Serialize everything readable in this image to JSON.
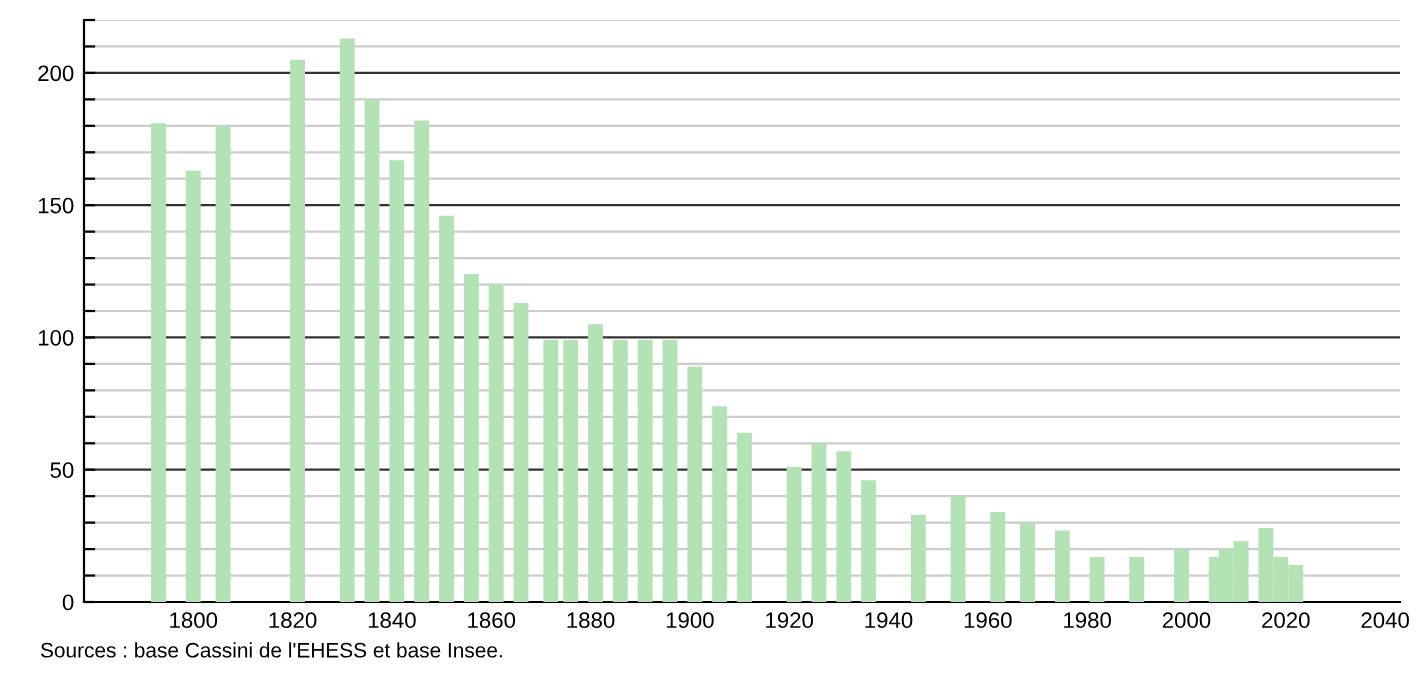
{
  "chart_data": {
    "type": "bar",
    "color": "#b3e3b5",
    "x": [
      1793,
      1800,
      1806,
      1821,
      1831,
      1836,
      1841,
      1846,
      1851,
      1856,
      1861,
      1866,
      1872,
      1876,
      1881,
      1886,
      1891,
      1896,
      1901,
      1906,
      1911,
      1921,
      1926,
      1931,
      1936,
      1946,
      1954,
      1962,
      1968,
      1975,
      1982,
      1990,
      1999,
      2006,
      2008,
      2011,
      2016,
      2019,
      2022
    ],
    "values": [
      181,
      163,
      180,
      205,
      213,
      190,
      167,
      182,
      146,
      124,
      120,
      113,
      99,
      99,
      105,
      99,
      99,
      99,
      89,
      74,
      64,
      51,
      60,
      57,
      46,
      33,
      40,
      34,
      30,
      27,
      17,
      17,
      20,
      17,
      20,
      23,
      28,
      17,
      14
    ],
    "xlim": [
      1778,
      2043
    ],
    "xticks": [
      1800,
      1820,
      1840,
      1860,
      1880,
      1900,
      1920,
      1940,
      1960,
      1980,
      2000,
      2020,
      2040
    ],
    "ylim": [
      0,
      220
    ],
    "yticks": [
      0,
      {
        "value": 10,
        "label": null
      },
      {
        "value": 20,
        "label": null
      },
      {
        "value": 30,
        "label": null
      },
      {
        "value": 40,
        "label": null
      },
      50,
      {
        "value": 60,
        "label": null
      },
      {
        "value": 70,
        "label": null
      },
      {
        "value": 80,
        "label": null
      },
      {
        "value": 90,
        "label": null
      },
      100,
      {
        "value": 110,
        "label": null
      },
      {
        "value": 120,
        "label": null
      },
      {
        "value": 130,
        "label": null
      },
      {
        "value": 140,
        "label": null
      },
      150,
      {
        "value": 160,
        "label": null
      },
      {
        "value": 170,
        "label": null
      },
      {
        "value": 180,
        "label": null
      },
      {
        "value": 190,
        "label": null
      },
      200,
      {
        "value": 210,
        "label": null
      },
      {
        "value": 220,
        "label": null
      }
    ],
    "grid": "y",
    "annotations": [
      "Sources : base Cassini de l'EHESS et base Insee."
    ]
  }
}
